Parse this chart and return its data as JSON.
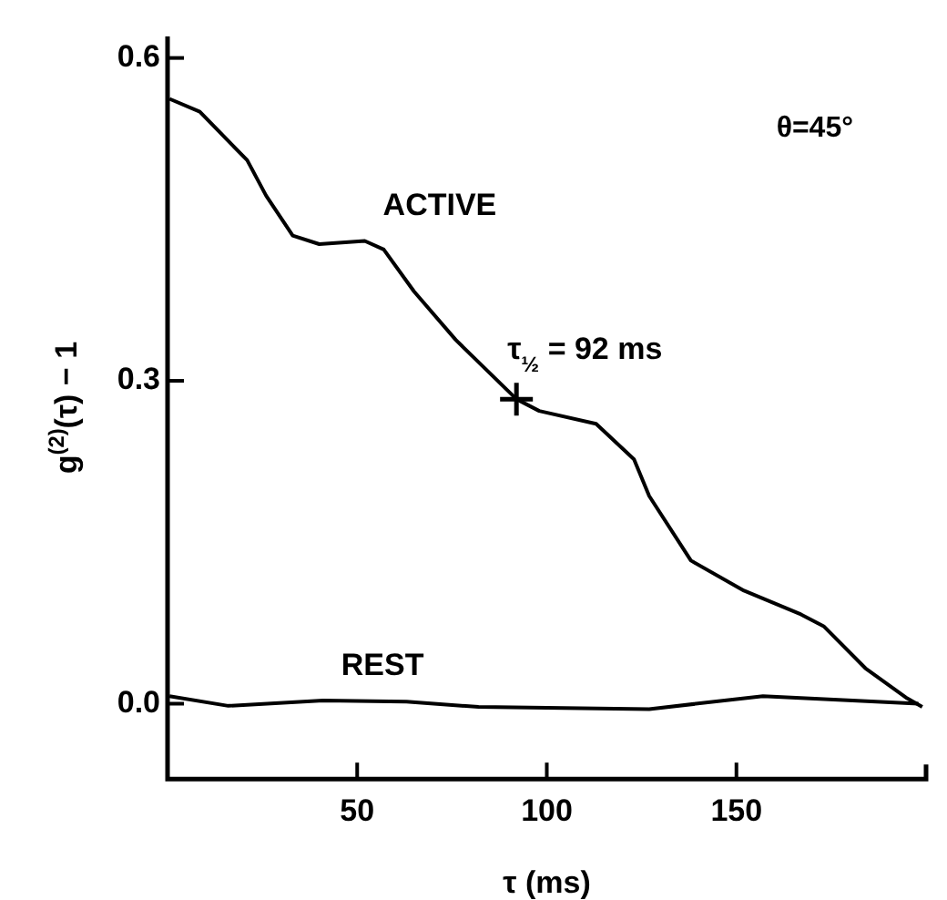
{
  "chart_data": {
    "type": "line",
    "xlabel": "τ (ms)",
    "ylabel": "g$^{(2)}$(τ) − 1",
    "xlim": [
      0,
      200
    ],
    "ylim": [
      -0.07,
      0.62
    ],
    "xticks": [
      50,
      100,
      150
    ],
    "yticks": [
      {
        "value": 0,
        "label": "0.0"
      },
      0.3,
      0.6
    ],
    "grid": false,
    "legend": false,
    "marker": "none",
    "line_style": "solid",
    "annotations": [
      "θ=45°",
      {
        "text": "τ$_{½}$ = 92 ms",
        "x": 92,
        "y": 0.283
      }
    ],
    "series": [
      {
        "name": "ACTIVE",
        "color": "#000000",
        "x": [
          0.5,
          8.5,
          21,
          26,
          33,
          40,
          52,
          57,
          65,
          76,
          92,
          98,
          113,
          123,
          127,
          138,
          152,
          167,
          173,
          184,
          195,
          199
        ],
        "values": [
          0.562,
          0.55,
          0.505,
          0.472,
          0.435,
          0.427,
          0.43,
          0.422,
          0.383,
          0.338,
          0.283,
          0.272,
          0.26,
          0.227,
          0.193,
          0.133,
          0.105,
          0.083,
          0.072,
          0.033,
          0.005,
          -0.003
        ]
      },
      {
        "name": "REST",
        "color": "#000000",
        "x": [
          0.5,
          16,
          41,
          63,
          82,
          127,
          157,
          198
        ],
        "values": [
          0.007,
          -0.002,
          0.003,
          0.002,
          -0.003,
          -0.005,
          0.007,
          0
        ]
      },
      {
        "type": "scatter",
        "marker": "cross",
        "color": "#000000",
        "x": [
          92
        ],
        "values": [
          0.283
        ]
      }
    ]
  }
}
